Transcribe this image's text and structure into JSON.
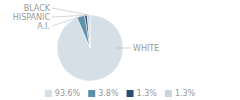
{
  "chart_data": {
    "type": "pie",
    "categories": [
      "WHITE",
      "A.I.",
      "HISPANIC",
      "BLACK"
    ],
    "values": [
      93.6,
      3.8,
      1.3,
      1.3
    ],
    "value_labels": [
      "93.6%",
      "3.8%",
      "1.3%",
      "1.3%"
    ],
    "colors": [
      "#d4dfe8",
      "#5e8fab",
      "#2b4e6e",
      "#c8d4de"
    ],
    "legend": "bottom"
  }
}
